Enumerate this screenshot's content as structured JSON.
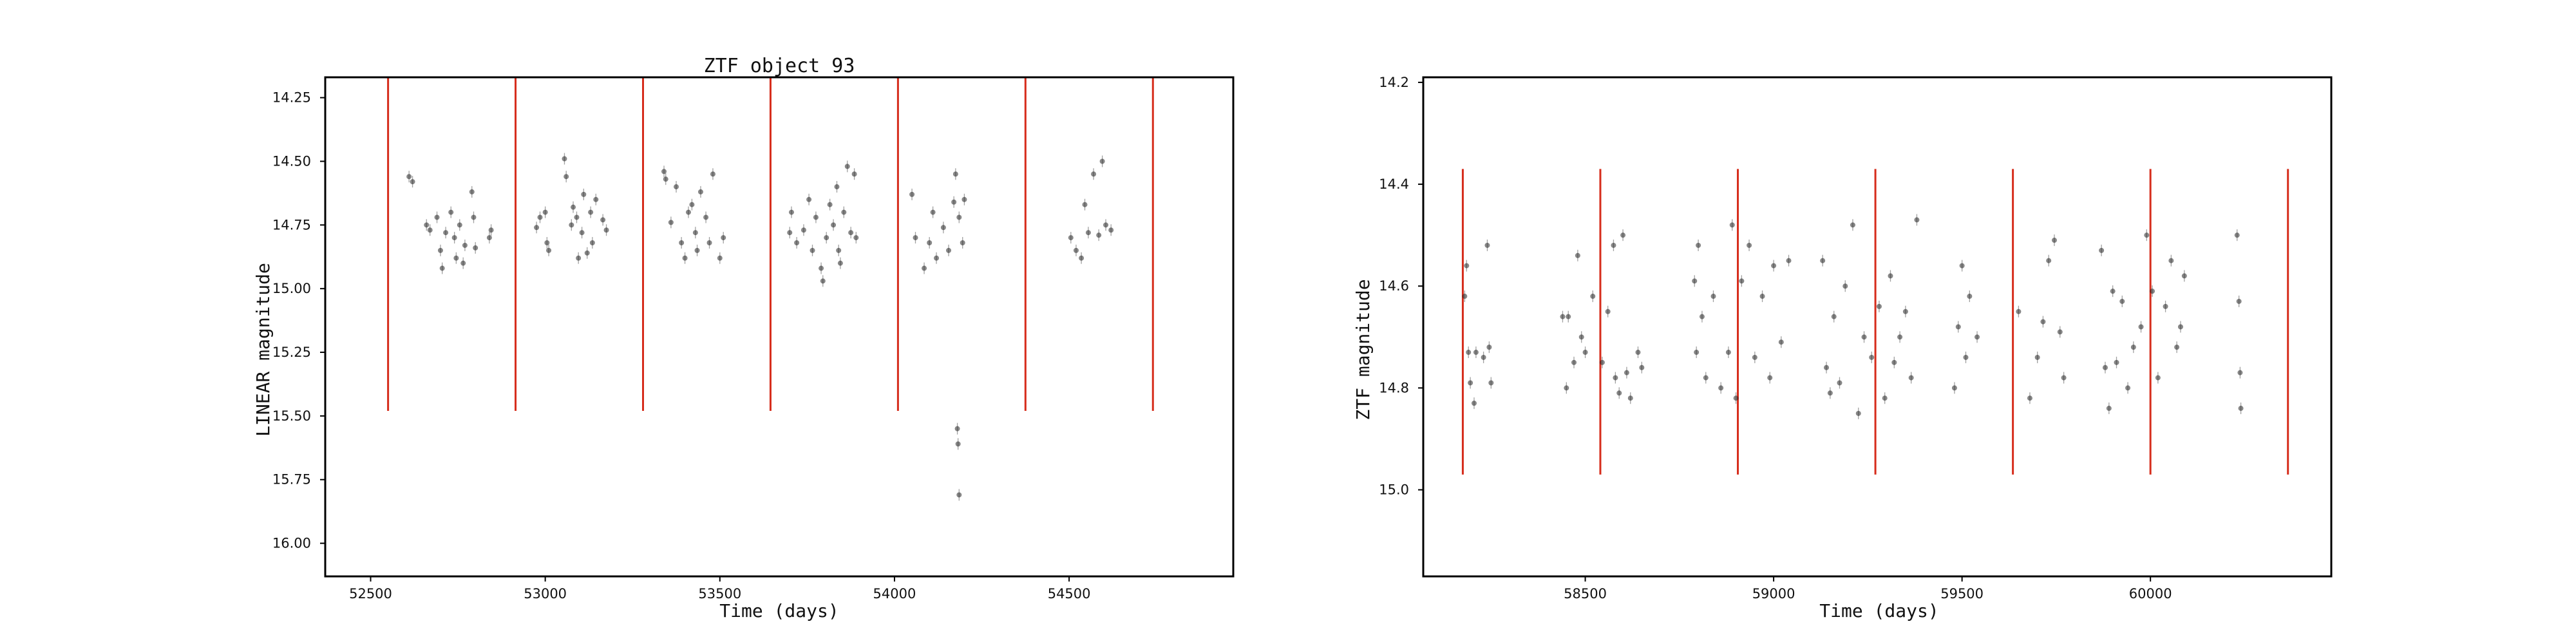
{
  "chart_data": [
    {
      "type": "scatter",
      "title": "ZTF object 93",
      "xlabel": "Time (days)",
      "ylabel": "LINEAR magnitude",
      "xlim": [
        52370,
        54970
      ],
      "ylim": [
        16.13,
        14.17
      ],
      "y_inverted": true,
      "grid": false,
      "xticks": [
        52500,
        53000,
        53500,
        54000,
        54500
      ],
      "yticks": [
        14.25,
        14.5,
        14.75,
        15.0,
        15.25,
        15.5,
        15.75,
        16.0
      ],
      "xtick_labels": [
        "52500",
        "53000",
        "53500",
        "54000",
        "54500"
      ],
      "ytick_labels": [
        "14.25",
        "14.50",
        "14.75",
        "15.00",
        "15.25",
        "15.50",
        "15.75",
        "16.00"
      ],
      "vlines": {
        "color": "#d62c1b",
        "x": [
          52550,
          52915,
          53280,
          53645,
          54010,
          54375,
          54740
        ],
        "ymin": 14.17,
        "ymax": 15.48
      },
      "series": [
        {
          "values": [
            [
              52610,
              14.56
            ],
            [
              52620,
              14.58
            ],
            [
              52660,
              14.75
            ],
            [
              52670,
              14.77
            ],
            [
              52690,
              14.72
            ],
            [
              52700,
              14.85
            ],
            [
              52705,
              14.92
            ],
            [
              52715,
              14.78
            ],
            [
              52730,
              14.7
            ],
            [
              52740,
              14.8
            ],
            [
              52745,
              14.88
            ],
            [
              52755,
              14.75
            ],
            [
              52765,
              14.9
            ],
            [
              52770,
              14.83
            ],
            [
              52790,
              14.62
            ],
            [
              52795,
              14.72
            ],
            [
              52800,
              14.84
            ],
            [
              52840,
              14.8
            ],
            [
              52845,
              14.77
            ],
            [
              52975,
              14.76
            ],
            [
              52985,
              14.72
            ],
            [
              53000,
              14.7
            ],
            [
              53005,
              14.82
            ],
            [
              53010,
              14.85
            ],
            [
              53055,
              14.49
            ],
            [
              53060,
              14.56
            ],
            [
              53075,
              14.75
            ],
            [
              53080,
              14.68
            ],
            [
              53090,
              14.72
            ],
            [
              53095,
              14.88
            ],
            [
              53105,
              14.78
            ],
            [
              53110,
              14.63
            ],
            [
              53120,
              14.86
            ],
            [
              53130,
              14.7
            ],
            [
              53135,
              14.82
            ],
            [
              53145,
              14.65
            ],
            [
              53165,
              14.73
            ],
            [
              53175,
              14.77
            ],
            [
              53340,
              14.54
            ],
            [
              53345,
              14.57
            ],
            [
              53360,
              14.74
            ],
            [
              53375,
              14.6
            ],
            [
              53390,
              14.82
            ],
            [
              53400,
              14.88
            ],
            [
              53410,
              14.7
            ],
            [
              53420,
              14.67
            ],
            [
              53430,
              14.78
            ],
            [
              53435,
              14.85
            ],
            [
              53445,
              14.62
            ],
            [
              53460,
              14.72
            ],
            [
              53470,
              14.82
            ],
            [
              53480,
              14.55
            ],
            [
              53500,
              14.88
            ],
            [
              53510,
              14.8
            ],
            [
              53700,
              14.78
            ],
            [
              53705,
              14.7
            ],
            [
              53720,
              14.82
            ],
            [
              53740,
              14.77
            ],
            [
              53755,
              14.65
            ],
            [
              53765,
              14.85
            ],
            [
              53775,
              14.72
            ],
            [
              53790,
              14.92
            ],
            [
              53795,
              14.97
            ],
            [
              53805,
              14.8
            ],
            [
              53815,
              14.67
            ],
            [
              53825,
              14.75
            ],
            [
              53835,
              14.6
            ],
            [
              53840,
              14.85
            ],
            [
              53845,
              14.9
            ],
            [
              53855,
              14.7
            ],
            [
              53865,
              14.52
            ],
            [
              53875,
              14.78
            ],
            [
              53885,
              14.55
            ],
            [
              53890,
              14.8
            ],
            [
              54050,
              14.63
            ],
            [
              54060,
              14.8
            ],
            [
              54085,
              14.92
            ],
            [
              54100,
              14.82
            ],
            [
              54110,
              14.7
            ],
            [
              54120,
              14.88
            ],
            [
              54140,
              14.76
            ],
            [
              54155,
              14.85
            ],
            [
              54170,
              14.66
            ],
            [
              54175,
              14.55
            ],
            [
              54185,
              14.72
            ],
            [
              54195,
              14.82
            ],
            [
              54200,
              14.65
            ],
            [
              54180,
              15.55
            ],
            [
              54182,
              15.61
            ],
            [
              54185,
              15.81
            ],
            [
              54505,
              14.8
            ],
            [
              54520,
              14.85
            ],
            [
              54535,
              14.88
            ],
            [
              54545,
              14.67
            ],
            [
              54555,
              14.78
            ],
            [
              54570,
              14.55
            ],
            [
              54585,
              14.79
            ],
            [
              54595,
              14.5
            ],
            [
              54605,
              14.75
            ],
            [
              54620,
              14.77
            ]
          ]
        }
      ]
    },
    {
      "type": "scatter",
      "title": "",
      "xlabel": "Time (days)",
      "ylabel": "ZTF magnitude",
      "xlim": [
        58070,
        60480
      ],
      "ylim": [
        15.17,
        14.19
      ],
      "y_inverted": true,
      "grid": false,
      "xticks": [
        58500,
        59000,
        59500,
        60000
      ],
      "yticks": [
        14.2,
        14.4,
        14.6,
        14.8,
        15.0
      ],
      "xtick_labels": [
        "58500",
        "59000",
        "59500",
        "60000"
      ],
      "ytick_labels": [
        "14.2",
        "14.4",
        "14.6",
        "14.8",
        "15.0"
      ],
      "vlines": {
        "color": "#d62c1b",
        "x": [
          58175,
          58540,
          58905,
          59270,
          59635,
          60000,
          60365
        ],
        "ymin": 14.37,
        "ymax": 14.97
      },
      "series": [
        {
          "values": [
            [
              58180,
              14.62
            ],
            [
              58185,
              14.56
            ],
            [
              58190,
              14.73
            ],
            [
              58195,
              14.79
            ],
            [
              58205,
              14.83
            ],
            [
              58210,
              14.73
            ],
            [
              58230,
              14.74
            ],
            [
              58240,
              14.52
            ],
            [
              58250,
              14.79
            ],
            [
              58245,
              14.72
            ],
            [
              58440,
              14.66
            ],
            [
              58450,
              14.8
            ],
            [
              58455,
              14.66
            ],
            [
              58470,
              14.75
            ],
            [
              58480,
              14.54
            ],
            [
              58490,
              14.7
            ],
            [
              58500,
              14.73
            ],
            [
              58520,
              14.62
            ],
            [
              58545,
              14.75
            ],
            [
              58560,
              14.65
            ],
            [
              58575,
              14.52
            ],
            [
              58580,
              14.78
            ],
            [
              58590,
              14.81
            ],
            [
              58600,
              14.5
            ],
            [
              58610,
              14.77
            ],
            [
              58620,
              14.82
            ],
            [
              58640,
              14.73
            ],
            [
              58650,
              14.76
            ],
            [
              58790,
              14.59
            ],
            [
              58795,
              14.73
            ],
            [
              58800,
              14.52
            ],
            [
              58810,
              14.66
            ],
            [
              58820,
              14.78
            ],
            [
              58840,
              14.62
            ],
            [
              58860,
              14.8
            ],
            [
              58880,
              14.73
            ],
            [
              58890,
              14.48
            ],
            [
              58900,
              14.82
            ],
            [
              58915,
              14.59
            ],
            [
              58935,
              14.52
            ],
            [
              58950,
              14.74
            ],
            [
              58970,
              14.62
            ],
            [
              58990,
              14.78
            ],
            [
              59000,
              14.56
            ],
            [
              59020,
              14.71
            ],
            [
              59040,
              14.55
            ],
            [
              59130,
              14.55
            ],
            [
              59140,
              14.76
            ],
            [
              59150,
              14.81
            ],
            [
              59160,
              14.66
            ],
            [
              59175,
              14.79
            ],
            [
              59190,
              14.6
            ],
            [
              59210,
              14.48
            ],
            [
              59225,
              14.85
            ],
            [
              59240,
              14.7
            ],
            [
              59260,
              14.74
            ],
            [
              59280,
              14.64
            ],
            [
              59295,
              14.82
            ],
            [
              59310,
              14.58
            ],
            [
              59320,
              14.75
            ],
            [
              59335,
              14.7
            ],
            [
              59350,
              14.65
            ],
            [
              59365,
              14.78
            ],
            [
              59380,
              14.47
            ],
            [
              59480,
              14.8
            ],
            [
              59490,
              14.68
            ],
            [
              59500,
              14.56
            ],
            [
              59510,
              14.74
            ],
            [
              59520,
              14.62
            ],
            [
              59540,
              14.7
            ],
            [
              59650,
              14.65
            ],
            [
              59680,
              14.82
            ],
            [
              59700,
              14.74
            ],
            [
              59715,
              14.67
            ],
            [
              59730,
              14.55
            ],
            [
              59745,
              14.51
            ],
            [
              59760,
              14.69
            ],
            [
              59770,
              14.78
            ],
            [
              59870,
              14.53
            ],
            [
              59880,
              14.76
            ],
            [
              59890,
              14.84
            ],
            [
              59900,
              14.61
            ],
            [
              59910,
              14.75
            ],
            [
              59925,
              14.63
            ],
            [
              59940,
              14.8
            ],
            [
              59955,
              14.72
            ],
            [
              59975,
              14.68
            ],
            [
              59990,
              14.5
            ],
            [
              60005,
              14.61
            ],
            [
              60020,
              14.78
            ],
            [
              60040,
              14.64
            ],
            [
              60055,
              14.55
            ],
            [
              60070,
              14.72
            ],
            [
              60080,
              14.68
            ],
            [
              60090,
              14.58
            ],
            [
              60230,
              14.5
            ],
            [
              60235,
              14.63
            ],
            [
              60238,
              14.77
            ],
            [
              60240,
              14.84
            ]
          ]
        }
      ]
    }
  ]
}
